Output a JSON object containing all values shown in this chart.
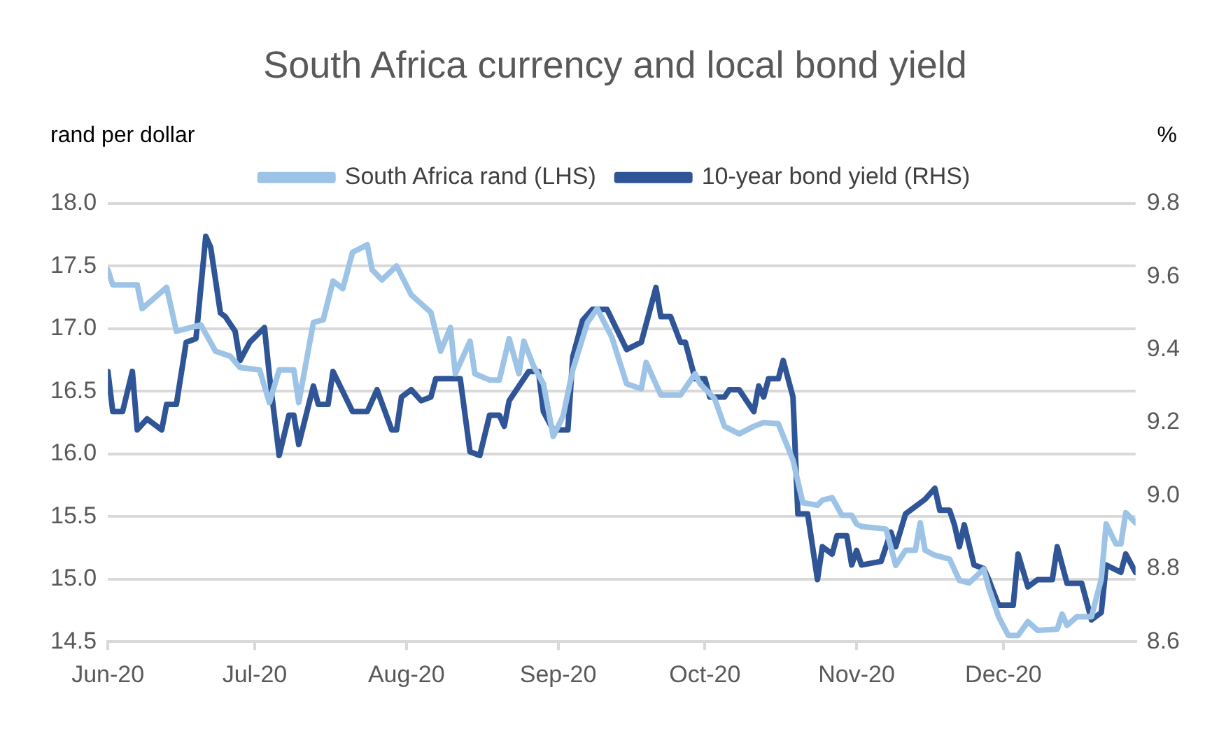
{
  "chart_data": {
    "type": "line",
    "title": "South Africa currency and local bond yield",
    "ylabel": "rand per dollar",
    "y2label": "%",
    "xlim": [
      "2020-06-01",
      "2020-12-28"
    ],
    "xticks": [
      {
        "value": "2020-06-01",
        "label": "Jun-20"
      },
      {
        "value": "2020-07-01",
        "label": "Jul-20"
      },
      {
        "value": "2020-08-01",
        "label": "Aug-20"
      },
      {
        "value": "2020-09-01",
        "label": "Sep-20"
      },
      {
        "value": "2020-10-01",
        "label": "Oct-20"
      },
      {
        "value": "2020-11-01",
        "label": "Nov-20"
      },
      {
        "value": "2020-12-01",
        "label": "Dec-20"
      }
    ],
    "ylim": [
      14.5,
      18.0
    ],
    "yticks": [
      14.5,
      {
        "value": 15,
        "label": "15.0"
      },
      15.5,
      {
        "value": 16,
        "label": "16.0"
      },
      16.5,
      {
        "value": 17,
        "label": "17.0"
      },
      17.5,
      {
        "value": 18,
        "label": "18.0"
      }
    ],
    "y2lim": [
      8.6,
      9.8
    ],
    "y2ticks": [
      8.6,
      8.8,
      {
        "value": 9,
        "label": "9.0"
      },
      9.2,
      9.4,
      9.6,
      9.8
    ],
    "grid": "y",
    "legend": "top",
    "marker": "none",
    "line_style": "solid",
    "series": [
      {
        "name": "South Africa rand (LHS)",
        "color": "#9dc3e6",
        "x": [
          "2020-06-01",
          "2020-06-02",
          "2020-06-07",
          "2020-06-08",
          "2020-06-13",
          "2020-06-15",
          "2020-06-20",
          "2020-06-23",
          "2020-06-26",
          "2020-06-28",
          "2020-07-02",
          "2020-07-04",
          "2020-07-06",
          "2020-07-09",
          "2020-07-10",
          "2020-07-13",
          "2020-07-15",
          "2020-07-17",
          "2020-07-19",
          "2020-07-21",
          "2020-07-24",
          "2020-07-25",
          "2020-07-27",
          "2020-07-30",
          "2020-08-02",
          "2020-08-06",
          "2020-08-08",
          "2020-08-10",
          "2020-08-11",
          "2020-08-14",
          "2020-08-15",
          "2020-08-18",
          "2020-08-20",
          "2020-08-22",
          "2020-08-24",
          "2020-08-25",
          "2020-08-27",
          "2020-08-29",
          "2020-08-31",
          "2020-09-02",
          "2020-09-04",
          "2020-09-07",
          "2020-09-09",
          "2020-09-12",
          "2020-09-15",
          "2020-09-18",
          "2020-09-19",
          "2020-09-22",
          "2020-09-26",
          "2020-09-29",
          "2020-09-30",
          "2020-10-03",
          "2020-10-05",
          "2020-10-08",
          "2020-10-11",
          "2020-10-13",
          "2020-10-16",
          "2020-10-19",
          "2020-10-21",
          "2020-10-24",
          "2020-10-25",
          "2020-10-27",
          "2020-10-29",
          "2020-10-31",
          "2020-11-01",
          "2020-11-02",
          "2020-11-07",
          "2020-11-09",
          "2020-11-11",
          "2020-11-13",
          "2020-11-14",
          "2020-11-15",
          "2020-11-17",
          "2020-11-20",
          "2020-11-22",
          "2020-11-24",
          "2020-11-27",
          "2020-11-28",
          "2020-11-30",
          "2020-12-02",
          "2020-12-04",
          "2020-12-06",
          "2020-12-08",
          "2020-12-12",
          "2020-12-13",
          "2020-12-14",
          "2020-12-16",
          "2020-12-19",
          "2020-12-21",
          "2020-12-22",
          "2020-12-24",
          "2020-12-25",
          "2020-12-26",
          "2020-12-28"
        ],
        "values": [
          17.47,
          17.35,
          17.35,
          17.16,
          17.33,
          16.98,
          17.03,
          16.82,
          16.78,
          16.69,
          16.67,
          16.41,
          16.67,
          16.67,
          16.41,
          17.05,
          17.07,
          17.38,
          17.32,
          17.61,
          17.67,
          17.47,
          17.39,
          17.5,
          17.27,
          17.13,
          16.82,
          17.01,
          16.64,
          16.9,
          16.64,
          16.59,
          16.59,
          16.92,
          16.64,
          16.9,
          16.7,
          16.56,
          16.14,
          16.3,
          16.67,
          17.05,
          17.16,
          16.93,
          16.56,
          16.52,
          16.73,
          16.47,
          16.47,
          16.64,
          16.56,
          16.44,
          16.22,
          16.16,
          16.22,
          16.25,
          16.24,
          15.95,
          15.61,
          15.59,
          15.63,
          15.65,
          15.51,
          15.51,
          15.44,
          15.42,
          15.4,
          15.11,
          15.23,
          15.23,
          15.45,
          15.23,
          15.19,
          15.16,
          14.99,
          14.97,
          15.08,
          14.93,
          14.7,
          14.55,
          14.55,
          14.66,
          14.59,
          14.6,
          14.72,
          14.63,
          14.7,
          14.7,
          15.0,
          15.44,
          15.28,
          15.28,
          15.53,
          15.45
        ]
      },
      {
        "name": "10-year bond yield (RHS)",
        "color": "#2f5597",
        "axis": "y2",
        "x": [
          "2020-06-01",
          "2020-06-02",
          "2020-06-04",
          "2020-06-06",
          "2020-06-07",
          "2020-06-09",
          "2020-06-12",
          "2020-06-13",
          "2020-06-15",
          "2020-06-17",
          "2020-06-19",
          "2020-06-21",
          "2020-06-22",
          "2020-06-24",
          "2020-06-25",
          "2020-06-27",
          "2020-06-28",
          "2020-06-30",
          "2020-07-03",
          "2020-07-04",
          "2020-07-06",
          "2020-07-08",
          "2020-07-09",
          "2020-07-10",
          "2020-07-13",
          "2020-07-14",
          "2020-07-16",
          "2020-07-17",
          "2020-07-21",
          "2020-07-24",
          "2020-07-26",
          "2020-07-29",
          "2020-07-30",
          "2020-07-31",
          "2020-08-02",
          "2020-08-04",
          "2020-08-06",
          "2020-08-07",
          "2020-08-10",
          "2020-08-12",
          "2020-08-14",
          "2020-08-16",
          "2020-08-18",
          "2020-08-20",
          "2020-08-21",
          "2020-08-22",
          "2020-08-26",
          "2020-08-28",
          "2020-08-29",
          "2020-08-31",
          "2020-09-03",
          "2020-09-04",
          "2020-09-06",
          "2020-09-08",
          "2020-09-11",
          "2020-09-15",
          "2020-09-18",
          "2020-09-21",
          "2020-09-22",
          "2020-09-24",
          "2020-09-26",
          "2020-09-27",
          "2020-09-29",
          "2020-10-01",
          "2020-10-02",
          "2020-10-05",
          "2020-10-06",
          "2020-10-08",
          "2020-10-11",
          "2020-10-12",
          "2020-10-13",
          "2020-10-14",
          "2020-10-16",
          "2020-10-17",
          "2020-10-19",
          "2020-10-20",
          "2020-10-22",
          "2020-10-24",
          "2020-10-25",
          "2020-10-27",
          "2020-10-28",
          "2020-10-30",
          "2020-10-31",
          "2020-11-01",
          "2020-11-02",
          "2020-11-06",
          "2020-11-08",
          "2020-11-09",
          "2020-11-11",
          "2020-11-12",
          "2020-11-15",
          "2020-11-17",
          "2020-11-18",
          "2020-11-20",
          "2020-11-21",
          "2020-11-22",
          "2020-11-23",
          "2020-11-25",
          "2020-11-27",
          "2020-11-28",
          "2020-11-30",
          "2020-12-03",
          "2020-12-04",
          "2020-12-06",
          "2020-12-08",
          "2020-12-11",
          "2020-12-12",
          "2020-12-14",
          "2020-12-17",
          "2020-12-19",
          "2020-12-21",
          "2020-12-22",
          "2020-12-25",
          "2020-12-26",
          "2020-12-28"
        ],
        "values": [
          9.34,
          9.23,
          9.23,
          9.34,
          9.18,
          9.21,
          9.18,
          9.25,
          9.25,
          9.42,
          9.43,
          9.71,
          9.68,
          9.5,
          9.49,
          9.45,
          9.37,
          9.42,
          9.46,
          9.33,
          9.11,
          9.22,
          9.22,
          9.14,
          9.3,
          9.25,
          9.25,
          9.34,
          9.23,
          9.23,
          9.29,
          9.18,
          9.18,
          9.27,
          9.29,
          9.26,
          9.27,
          9.32,
          9.32,
          9.32,
          9.12,
          9.11,
          9.22,
          9.22,
          9.19,
          9.26,
          9.34,
          9.34,
          9.23,
          9.18,
          9.18,
          9.38,
          9.48,
          9.51,
          9.51,
          9.4,
          9.42,
          9.57,
          9.49,
          9.49,
          9.42,
          9.42,
          9.32,
          9.32,
          9.27,
          9.27,
          9.29,
          9.29,
          9.23,
          9.3,
          9.27,
          9.32,
          9.32,
          9.37,
          9.27,
          8.95,
          8.95,
          8.77,
          8.86,
          8.84,
          8.89,
          8.89,
          8.81,
          8.85,
          8.81,
          8.82,
          8.9,
          8.86,
          8.95,
          8.96,
          8.99,
          9.02,
          8.96,
          8.96,
          8.92,
          8.86,
          8.92,
          8.81,
          8.8,
          8.77,
          8.7,
          8.7,
          8.84,
          8.75,
          8.77,
          8.77,
          8.86,
          8.76,
          8.76,
          8.66,
          8.68,
          8.81,
          8.79,
          8.84,
          8.79
        ]
      }
    ]
  }
}
